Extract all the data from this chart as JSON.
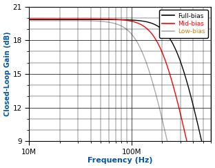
{
  "title": "",
  "xlabel": "Frequency (Hz)",
  "ylabel": "Closed-Loop Gain (dB)",
  "xlim": [
    10000000.0,
    600000000.0
  ],
  "ylim": [
    9,
    21
  ],
  "yticks": [
    9,
    12,
    15,
    18,
    21
  ],
  "xtick_labels": [
    "10M",
    "100M"
  ],
  "xtick_positions": [
    10000000.0,
    100000000.0
  ],
  "dc_gain_full": 19.85,
  "dc_gain_mid": 19.9,
  "dc_gain_low": 19.75,
  "bw_full": 280000000.0,
  "bw_mid": 200000000.0,
  "bw_low": 130000000.0,
  "order_full": 2.2,
  "order_mid": 2.2,
  "order_low": 2.2,
  "color_full": "#000000",
  "color_mid": "#ff0000",
  "color_low": "#aaaaaa",
  "legend_labels": [
    "Full-bias",
    "Mid-bias",
    "Low-bias"
  ],
  "legend_colors": [
    "#000000",
    "#ff0000",
    "#aaaaaa"
  ],
  "legend_text_colors": [
    "#000000",
    "#ff0000",
    "#d4800a"
  ],
  "bg_color": "#ffffff",
  "grid_color": "#000000",
  "linewidth": 1.0,
  "tick_color": "#000000",
  "label_color": "#000000",
  "xlabel_color": "#0055aa",
  "ylabel_color": "#0055aa"
}
